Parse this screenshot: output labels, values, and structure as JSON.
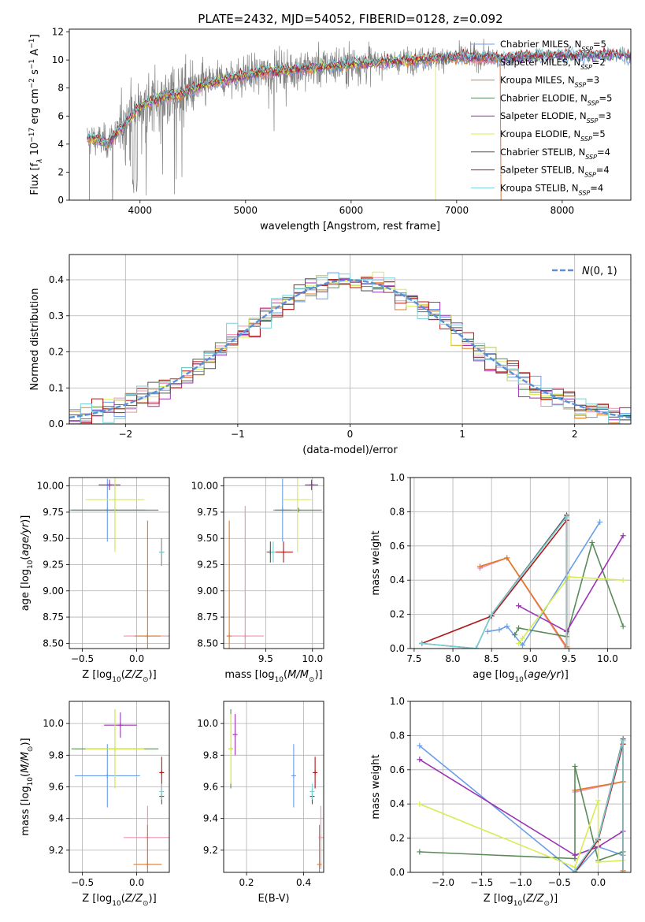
{
  "figure": {
    "title": "PLATE=2432, MJD=54052, FIBERID=0128, z=0.092"
  },
  "colors": {
    "Chabrier MILES": "#6a9ee8",
    "Salpeter MILES": "#f08fb0",
    "Kroupa MILES": "#e07a24",
    "Chabrier ELODIE": "#5a8a5a",
    "Salpeter ELODIE": "#9c33b5",
    "Kroupa ELODIE": "#d8ec52",
    "Chabrier STELIB": "#555555",
    "Salpeter STELIB": "#b01818",
    "Kroupa STELIB": "#7ad0d8",
    "data": "#808080"
  },
  "chart_data": [
    {
      "id": "spectrum",
      "type": "line",
      "xlabel": "wavelength [Angstrom, rest frame]",
      "ylabel": "Flux [f_λ 10^-17 erg cm^-2 s^-1 A^-1]",
      "xlim": [
        3330,
        8650
      ],
      "ylim": [
        0,
        12.2
      ],
      "xticks": [
        4000,
        5000,
        6000,
        7000,
        8000
      ],
      "yticks": [
        0,
        2,
        4,
        6,
        8,
        10,
        12
      ],
      "grid": false,
      "legend_position": "top-right",
      "continuum": {
        "x": [
          3500,
          3600,
          3700,
          3800,
          3900,
          4000,
          4200,
          4400,
          4600,
          4800,
          5000,
          5200,
          5400,
          5600,
          5800,
          6000,
          6200,
          6400,
          6600,
          6800,
          7000,
          7200,
          7400,
          7600,
          7800,
          8000,
          8200,
          8400,
          8650
        ],
        "y": [
          4.4,
          4.3,
          4.1,
          5.0,
          5.8,
          6.7,
          7.3,
          7.6,
          8.2,
          8.6,
          8.9,
          9.2,
          9.3,
          9.4,
          9.6,
          9.7,
          9.8,
          9.9,
          10.0,
          10.1,
          10.2,
          10.2,
          10.1,
          10.2,
          10.3,
          10.3,
          10.3,
          10.4,
          10.3
        ]
      },
      "series": [
        {
          "name": "Chabrier MILES",
          "nssp": "5"
        },
        {
          "name": "Salpeter MILES",
          "nssp": "2"
        },
        {
          "name": "Kroupa MILES",
          "nssp": "3"
        },
        {
          "name": "Chabrier ELODIE",
          "nssp": "5"
        },
        {
          "name": "Salpeter ELODIE",
          "nssp": "3"
        },
        {
          "name": "Kroupa ELODIE",
          "nssp": "5"
        },
        {
          "name": "Chabrier STELIB",
          "nssp": "4"
        },
        {
          "name": "Salpeter STELIB",
          "nssp": "4"
        },
        {
          "name": "Kroupa STELIB",
          "nssp": "4"
        }
      ]
    },
    {
      "id": "histogram",
      "type": "line",
      "xlabel": "(data-model)/error",
      "ylabel": "Normed distribution",
      "xlim": [
        -2.5,
        2.5
      ],
      "ylim": [
        0,
        0.47
      ],
      "xticks": [
        -2,
        -1,
        0,
        1,
        2
      ],
      "yticks": [
        0.0,
        0.1,
        0.2,
        0.3,
        0.4
      ],
      "grid": true,
      "legend_position": "top-right",
      "legend": "N(0,1)"
    },
    {
      "id": "age-vs-Z",
      "type": "scatter",
      "xlabel": "Z [log10(Z/Z⊙)]",
      "ylabel": "age [log10(age/yr)]",
      "xlim": [
        -0.62,
        0.3
      ],
      "ylim": [
        8.45,
        10.08
      ],
      "xticks": [
        -0.5,
        0.0
      ],
      "yticks": [
        8.5,
        8.75,
        9.0,
        9.25,
        9.5,
        9.75,
        10.0
      ],
      "grid": true,
      "points": [
        {
          "series": "Chabrier MILES",
          "x": -0.27,
          "y": 9.77,
          "xerr": 0.35,
          "yerr": 0.3
        },
        {
          "series": "Salpeter MILES",
          "x": 0.1,
          "y": 8.57,
          "xerr": 0.22,
          "yerr": 0.0
        },
        {
          "series": "Kroupa MILES",
          "x": 0.1,
          "y": 8.57,
          "xerr": 0.12,
          "yerr": 1.1
        },
        {
          "series": "Chabrier ELODIE",
          "x": -0.2,
          "y": 9.77,
          "xerr": 0.4,
          "yerr": 0.37
        },
        {
          "series": "Salpeter ELODIE",
          "x": -0.25,
          "y": 10.01,
          "xerr": 0.1,
          "yerr": 0.05
        },
        {
          "series": "Kroupa ELODIE",
          "x": -0.2,
          "y": 9.87,
          "xerr": 0.27,
          "yerr": 0.5
        },
        {
          "series": "Chabrier STELIB",
          "x": 0.23,
          "y": 9.37,
          "xerr": 0.01,
          "yerr": 0.13
        },
        {
          "series": "Salpeter STELIB",
          "x": 0.23,
          "y": 9.37,
          "xerr": 0.01,
          "yerr": 0.13
        },
        {
          "series": "Kroupa STELIB",
          "x": 0.23,
          "y": 9.37,
          "xerr": 0.01,
          "yerr": 0.13
        }
      ]
    },
    {
      "id": "age-vs-mass",
      "type": "scatter",
      "xlabel": "mass [log10(M/M⊙)]",
      "ylabel": "",
      "xlim": [
        9.05,
        10.12
      ],
      "ylim": [
        8.45,
        10.08
      ],
      "xticks": [
        9.5,
        10.0
      ],
      "yticks": [
        8.5,
        8.75,
        9.0,
        9.25,
        9.5,
        9.75,
        10.0
      ],
      "grid": true,
      "points": [
        {
          "series": "Chabrier MILES",
          "x": 9.68,
          "y": 9.77,
          "xerr": 0.1,
          "yerr": 0.3
        },
        {
          "series": "Salpeter MILES",
          "x": 9.28,
          "y": 8.57,
          "xerr": 0.2,
          "yerr": 1.24
        },
        {
          "series": "Kroupa MILES",
          "x": 9.11,
          "y": 8.57,
          "xerr": 0.0,
          "yerr": 1.1
        },
        {
          "series": "Chabrier ELODIE",
          "x": 9.85,
          "y": 9.77,
          "xerr": 0.25,
          "yerr": 0.0
        },
        {
          "series": "Salpeter ELODIE",
          "x": 9.99,
          "y": 10.01,
          "xerr": 0.07,
          "yerr": 0.05
        },
        {
          "series": "Kroupa ELODIE",
          "x": 9.84,
          "y": 9.87,
          "xerr": 0.15,
          "yerr": 0.5
        },
        {
          "series": "Chabrier STELIB",
          "x": 9.55,
          "y": 9.37,
          "xerr": 0.04,
          "yerr": 0.1
        },
        {
          "series": "Salpeter STELIB",
          "x": 9.69,
          "y": 9.37,
          "xerr": 0.1,
          "yerr": 0.1
        },
        {
          "series": "Kroupa STELIB",
          "x": 9.58,
          "y": 9.37,
          "xerr": 0.02,
          "yerr": 0.1
        }
      ]
    },
    {
      "id": "weight-vs-age",
      "type": "line",
      "xlabel": "age [log10(age/yr)]",
      "ylabel": "mass weight",
      "xlim": [
        7.45,
        10.3
      ],
      "ylim": [
        0,
        1.0
      ],
      "xticks": [
        7.5,
        8.0,
        8.5,
        9.0,
        9.5,
        10.0
      ],
      "yticks": [
        0.0,
        0.2,
        0.4,
        0.6,
        0.8,
        1.0
      ],
      "grid": true,
      "series": [
        {
          "name": "Chabrier MILES",
          "x": [
            8.45,
            8.6,
            8.7,
            8.9,
            9.9
          ],
          "y": [
            0.1,
            0.11,
            0.13,
            0.02,
            0.74
          ]
        },
        {
          "name": "Salpeter MILES",
          "x": [
            8.35,
            8.7,
            9.47
          ],
          "y": [
            0.47,
            0.53,
            0.0
          ]
        },
        {
          "name": "Kroupa MILES",
          "x": [
            8.35,
            8.7,
            9.47
          ],
          "y": [
            0.48,
            0.53,
            0.01
          ]
        },
        {
          "name": "Chabrier ELODIE",
          "x": [
            8.8,
            8.85,
            9.47,
            9.8,
            10.2
          ],
          "y": [
            0.08,
            0.12,
            0.07,
            0.62,
            0.13
          ]
        },
        {
          "name": "Salpeter ELODIE",
          "x": [
            8.85,
            9.47,
            10.2
          ],
          "y": [
            0.25,
            0.1,
            0.66
          ]
        },
        {
          "name": "Kroupa ELODIE",
          "x": [
            8.85,
            8.9,
            9.5,
            10.2
          ],
          "y": [
            0.03,
            0.06,
            0.42,
            0.4
          ]
        },
        {
          "name": "Chabrier STELIB",
          "x": [
            7.6,
            8.3,
            8.5,
            9.47,
            9.47
          ],
          "y": [
            0.03,
            0.0,
            0.2,
            0.78,
            0.0
          ]
        },
        {
          "name": "Salpeter STELIB",
          "x": [
            7.6,
            8.5,
            9.47,
            9.47
          ],
          "y": [
            0.03,
            0.19,
            0.75,
            0.0
          ]
        },
        {
          "name": "Kroupa STELIB",
          "x": [
            7.6,
            8.3,
            8.5,
            9.47,
            9.47
          ],
          "y": [
            0.03,
            0.0,
            0.2,
            0.77,
            0.0
          ]
        }
      ]
    },
    {
      "id": "mass-vs-Z",
      "type": "scatter",
      "xlabel": "Z [log10(Z/Z⊙)]",
      "ylabel": "mass [log10(M/M⊙)]",
      "xlim": [
        -0.62,
        0.3
      ],
      "ylim": [
        9.06,
        10.14
      ],
      "xticks": [
        -0.5,
        0.0
      ],
      "yticks": [
        9.2,
        9.4,
        9.6,
        9.8,
        10.0
      ],
      "grid": true,
      "points": [
        {
          "series": "Chabrier MILES",
          "x": -0.27,
          "y": 9.67,
          "xerr": 0.3,
          "yerr": 0.2
        },
        {
          "series": "Salpeter MILES",
          "x": 0.1,
          "y": 9.28,
          "xerr": 0.22,
          "yerr": 0.2
        },
        {
          "series": "Kroupa MILES",
          "x": 0.1,
          "y": 9.11,
          "xerr": 0.13,
          "yerr": 0.25
        },
        {
          "series": "Chabrier ELODIE",
          "x": -0.2,
          "y": 9.84,
          "xerr": 0.4,
          "yerr": 0.25
        },
        {
          "series": "Salpeter ELODIE",
          "x": -0.15,
          "y": 9.99,
          "xerr": 0.15,
          "yerr": 0.08
        },
        {
          "series": "Kroupa ELODIE",
          "x": -0.2,
          "y": 9.84,
          "xerr": 0.27,
          "yerr": 0.25
        },
        {
          "series": "Chabrier STELIB",
          "x": 0.23,
          "y": 9.54,
          "xerr": 0.01,
          "yerr": 0.05
        },
        {
          "series": "Salpeter STELIB",
          "x": 0.23,
          "y": 9.69,
          "xerr": 0.02,
          "yerr": 0.1
        },
        {
          "series": "Kroupa STELIB",
          "x": 0.23,
          "y": 9.57,
          "xerr": 0.01,
          "yerr": 0.05
        }
      ]
    },
    {
      "id": "mass-vs-EBV",
      "type": "scatter",
      "xlabel": "E(B-V)",
      "ylabel": "",
      "xlim": [
        0.12,
        0.47
      ],
      "ylim": [
        9.06,
        10.14
      ],
      "xticks": [
        0.2,
        0.4
      ],
      "yticks": [
        9.2,
        9.4,
        9.6,
        9.8,
        10.0
      ],
      "grid": true,
      "points": [
        {
          "series": "Chabrier MILES",
          "x": 0.365,
          "y": 9.67,
          "xerr": 0.0,
          "yerr": 0.2
        },
        {
          "series": "Salpeter MILES",
          "x": 0.46,
          "y": 9.28,
          "xerr": 0.0,
          "yerr": 0.2
        },
        {
          "series": "Kroupa MILES",
          "x": 0.455,
          "y": 9.11,
          "xerr": 0.0,
          "yerr": 0.25
        },
        {
          "series": "Chabrier ELODIE",
          "x": 0.145,
          "y": 9.84,
          "xerr": 0.0,
          "yerr": 0.25
        },
        {
          "series": "Salpeter ELODIE",
          "x": 0.16,
          "y": 9.93,
          "xerr": 0.0,
          "yerr": 0.13
        },
        {
          "series": "Kroupa ELODIE",
          "x": 0.145,
          "y": 9.84,
          "xerr": 0.0,
          "yerr": 0.22
        },
        {
          "series": "Chabrier STELIB",
          "x": 0.43,
          "y": 9.54,
          "xerr": 0.0,
          "yerr": 0.05
        },
        {
          "series": "Salpeter STELIB",
          "x": 0.44,
          "y": 9.69,
          "xerr": 0.0,
          "yerr": 0.1
        },
        {
          "series": "Kroupa STELIB",
          "x": 0.43,
          "y": 9.57,
          "xerr": 0.0,
          "yerr": 0.05
        }
      ]
    },
    {
      "id": "weight-vs-Z",
      "type": "line",
      "xlabel": "Z [log10(Z/Z⊙)]",
      "ylabel": "mass weight",
      "xlim": [
        -2.42,
        0.42
      ],
      "ylim": [
        0,
        1.0
      ],
      "xticks": [
        -2.0,
        -1.5,
        -1.0,
        -0.5,
        0.0
      ],
      "yticks": [
        0.0,
        0.2,
        0.4,
        0.6,
        0.8,
        1.0
      ],
      "grid": true,
      "series": [
        {
          "name": "Chabrier MILES",
          "x": [
            -2.3,
            -0.3,
            0.0,
            0.32
          ],
          "y": [
            0.74,
            0.0,
            0.15,
            0.1
          ]
        },
        {
          "name": "Salpeter MILES",
          "x": [
            -0.3,
            0.32,
            0.32
          ],
          "y": [
            0.47,
            0.53,
            0.0
          ]
        },
        {
          "name": "Kroupa MILES",
          "x": [
            -0.3,
            0.32,
            0.32
          ],
          "y": [
            0.48,
            0.53,
            0.01
          ]
        },
        {
          "name": "Chabrier ELODIE",
          "x": [
            -2.3,
            -0.3,
            -0.3,
            0.0,
            0.32
          ],
          "y": [
            0.12,
            0.08,
            0.62,
            0.07,
            0.12
          ]
        },
        {
          "name": "Salpeter ELODIE",
          "x": [
            -2.3,
            -0.3,
            0.0,
            0.32
          ],
          "y": [
            0.66,
            0.1,
            0.15,
            0.24
          ]
        },
        {
          "name": "Kroupa ELODIE",
          "x": [
            -2.3,
            -0.3,
            0.0,
            0.0,
            0.32
          ],
          "y": [
            0.4,
            0.03,
            0.42,
            0.06,
            0.07
          ]
        },
        {
          "name": "Chabrier STELIB",
          "x": [
            -0.3,
            0.0,
            0.32,
            0.32
          ],
          "y": [
            0.0,
            0.2,
            0.78,
            0.0
          ]
        },
        {
          "name": "Salpeter STELIB",
          "x": [
            -0.3,
            0.0,
            0.32,
            0.32
          ],
          "y": [
            0.0,
            0.19,
            0.75,
            0.0
          ]
        },
        {
          "name": "Kroupa STELIB",
          "x": [
            -0.3,
            0.0,
            0.32,
            0.32
          ],
          "y": [
            0.01,
            0.2,
            0.77,
            0.0
          ]
        }
      ]
    }
  ]
}
